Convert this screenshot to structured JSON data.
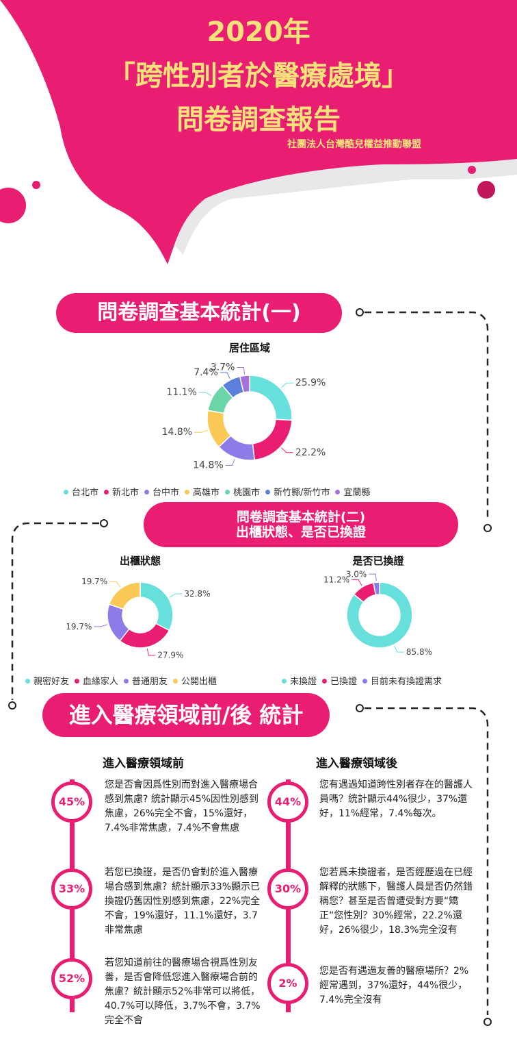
{
  "header": {
    "title_line1": "2020年",
    "title_line2": "「跨性別者於醫療處境」",
    "title_line3": "問卷調查報告",
    "organization": "社團法人台灣酷兒權益推動聯盟"
  },
  "section1": {
    "title": "問卷調查基本統計(一)"
  },
  "section2": {
    "title_line1": "問卷調查基本統計(二)",
    "title_line2": "出櫃狀態、是否已換證"
  },
  "section3": {
    "title": "進入醫療領域前/後 統計",
    "before": {
      "heading": "進入醫療領域前",
      "items": [
        {
          "badge": "45%",
          "text": "您是否會因爲性別而對進入醫療場合感到焦慮? 統計顯示45%因性別感到焦慮，26%完全不會，15%還好，7.4%非常焦慮，7.4%不會焦慮"
        },
        {
          "badge": "33%",
          "text": "若您已換證，是否仍會對於進入醫療場合感到焦慮？統計顯示33%顯示已換證仍舊因性別感到焦慮，22%完全不會，19%還好，11.1%還好，3.7非常焦慮"
        },
        {
          "badge": "52%",
          "text": "若您知道前往的醫療場合視爲性別友善，是否會降低您進入醫療場合前的焦慮？統計顯示52%非常可以將低，40.7%可以降低，3.7%不會，3.7%完全不會"
        }
      ]
    },
    "after": {
      "heading": "進入醫療領域後",
      "items": [
        {
          "badge": "44%",
          "text": "您有遇過知道跨性別者存在的醫護人員嗎？統計顯示44%很少，37%還好，11%經常，7.4%每次。"
        },
        {
          "badge": "30%",
          "text": "您若爲未換證者，是否經歷過在已經解釋的狀態下，醫護人員是否仍然錯稱您？甚至是否曾遭受對方要“矯正“您性別？30%經常，22.2%還好，26%很少，18.3%完全沒有"
        },
        {
          "badge": "2%",
          "text": "您是否有遇過友善的醫療場所？2%經常遇到，37%還好，44%很少，7.4%完全沒有"
        }
      ]
    }
  },
  "colors": {
    "brand": "#e91e73",
    "title_yellow": "#f6e27a",
    "teal": "#67e0dd",
    "pink": "#e91e73",
    "purple": "#8d7ce8",
    "yellow": "#f9c855",
    "green": "#6ad6a8",
    "blue": "#5c7fdb",
    "violet": "#a471d9"
  },
  "chart_data": [
    {
      "type": "pie",
      "title": "居住區域",
      "categories": [
        "台北市",
        "新北市",
        "台中市",
        "高雄市",
        "桃園市",
        "新竹縣/新竹市",
        "宜蘭縣"
      ],
      "values": [
        25.9,
        22.2,
        14.8,
        14.8,
        11.1,
        7.4,
        3.7
      ],
      "labels": [
        "25.9%",
        "22.2%",
        "14.8%",
        "14.8%",
        "11.1%",
        "7.4%",
        "3.7%"
      ],
      "colors": [
        "#67e0dd",
        "#e91e73",
        "#8d7ce8",
        "#f9c855",
        "#6ad6a8",
        "#5c7fdb",
        "#a471d9"
      ],
      "legend": "bottom"
    },
    {
      "type": "pie",
      "title": "出櫃狀態",
      "categories": [
        "親密好友",
        "血緣家人",
        "普通朋友",
        "公開出櫃"
      ],
      "values": [
        32.8,
        27.9,
        19.7,
        19.7
      ],
      "labels": [
        "32.8%",
        "27.9%",
        "19.7%",
        "19.7%"
      ],
      "colors": [
        "#67e0dd",
        "#e91e73",
        "#8d7ce8",
        "#f9c855"
      ],
      "legend": "bottom"
    },
    {
      "type": "pie",
      "title": "是否已換證",
      "categories": [
        "未換證",
        "已換證",
        "目前未有換證需求"
      ],
      "values": [
        85.8,
        11.2,
        3.0
      ],
      "labels": [
        "85.8%",
        "11.2%",
        "3.0%"
      ],
      "colors": [
        "#67e0dd",
        "#e91e73",
        "#8d7ce8"
      ],
      "legend": "bottom"
    }
  ]
}
